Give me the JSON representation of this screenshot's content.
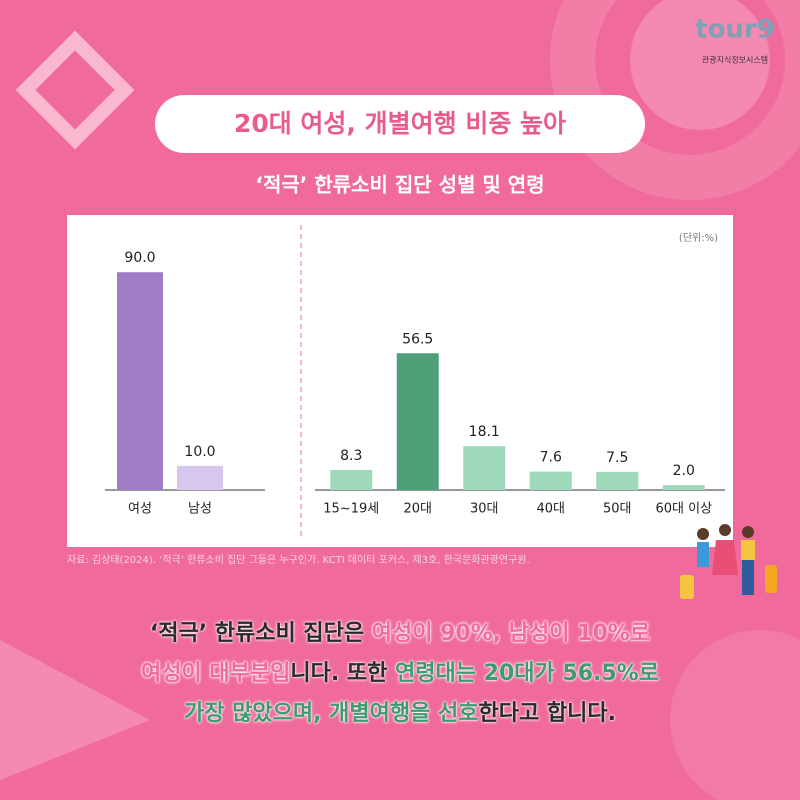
{
  "logo": {
    "brand": "tour9",
    "subtitle": "관광지식정보시스템"
  },
  "header": {
    "title": "20대 여성, 개별여행 비중 높아",
    "subtitle": "‘적극’ 한류소비 집단 성별 및 연령"
  },
  "chart_data": [
    {
      "type": "bar",
      "categories": [
        "여성",
        "남성"
      ],
      "values": [
        90,
        10
      ],
      "value_labels": [
        "90.0",
        "10.0"
      ],
      "colors": [
        "#a07cc6",
        "#d8c7ec"
      ]
    },
    {
      "type": "bar",
      "unit_label": "(단위:%)",
      "categories": [
        "15~19세",
        "20대",
        "30대",
        "40대",
        "50대",
        "60대 이상"
      ],
      "values": [
        8.3,
        56.5,
        18.1,
        7.6,
        7.5,
        2
      ],
      "value_labels": [
        "8.3",
        "56.5",
        "18.1",
        "7.6",
        "7.5",
        "2.0"
      ],
      "colors": [
        "#9ed9bb",
        "#4e9f78",
        "#9ed9bb",
        "#9ed9bb",
        "#9ed9bb",
        "#9ed9bb"
      ]
    }
  ],
  "source": "자료: 김상태(2024). ‘적극’ 한류소비 집단 그들은 누구인가. KCTI 데이터 포커스, 제3호, 한국문화관광연구원.",
  "body": [
    [
      {
        "text": "‘적극’ 한류소비 집단은 ",
        "tone": "dark"
      },
      {
        "text": "여성이 90%, 남성이 10%로",
        "tone": "pink"
      }
    ],
    [
      {
        "text": "여성이 대부분입",
        "tone": "pink"
      },
      {
        "text": "니다. 또한 ",
        "tone": "dark"
      },
      {
        "text": "연령대는 20대가 56.5%로",
        "tone": "green"
      }
    ],
    [
      {
        "text": "가장 많았으며, 개별여행을 선호",
        "tone": "green"
      },
      {
        "text": "한다고 합니다.",
        "tone": "dark"
      }
    ]
  ]
}
